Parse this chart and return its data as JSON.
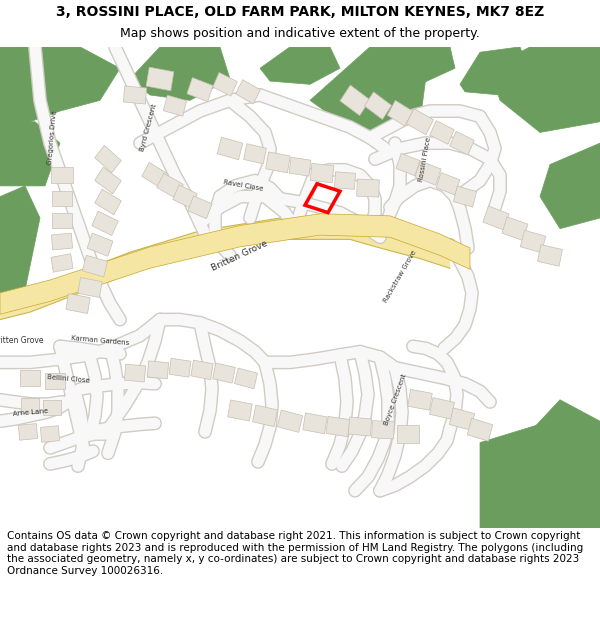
{
  "title_line1": "3, ROSSINI PLACE, OLD FARM PARK, MILTON KEYNES, MK7 8EZ",
  "title_line2": "Map shows position and indicative extent of the property.",
  "footer_text": "Contains OS data © Crown copyright and database right 2021. This information is subject to Crown copyright and database rights 2023 and is reproduced with the permission of HM Land Registry. The polygons (including the associated geometry, namely x, y co-ordinates) are subject to Crown copyright and database rights 2023 Ordnance Survey 100026316.",
  "title_fontsize": 10,
  "subtitle_fontsize": 9,
  "footer_fontsize": 7.5,
  "fig_width": 6.0,
  "fig_height": 6.25,
  "dpi": 100,
  "map_bg_color": "#f0eeea",
  "road_color_major": "#f5e6a3",
  "green_color": "#6b9e5e",
  "building_color": "#e8e3db",
  "building_stroke": "#c8bfb0",
  "highlight_color": "#ff0000"
}
